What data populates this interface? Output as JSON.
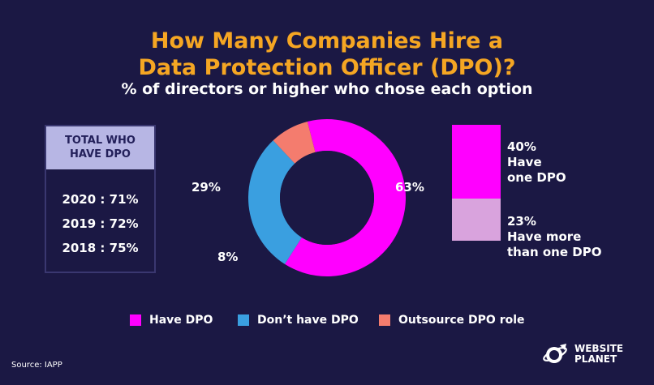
{
  "title_line1": "How Many Companies Hire a",
  "title_line2": "Data Protection Officer (DPO)?",
  "subtitle": "% of directors or higher who chose each option",
  "totals": {
    "header_line1": "TOTAL WHO",
    "header_line2": "HAVE DPO",
    "rows": [
      "2020 : 71%",
      "2019 : 72%",
      "2018 : 75%"
    ]
  },
  "chart_data": [
    {
      "type": "pie",
      "labels": [
        "Have DPO",
        "Don’t have DPO",
        "Outsource DPO role"
      ],
      "values": [
        63,
        29,
        8
      ],
      "value_labels": [
        "63%",
        "29%",
        "8%"
      ],
      "colors": [
        "#ff00ff",
        "#3a9fe0",
        "#f47c6e"
      ],
      "hole": true
    },
    {
      "type": "bar",
      "stacked": true,
      "segments": [
        {
          "value": 40,
          "label": "40%",
          "text_line1": "Have",
          "text_line2": "one DPO",
          "color": "#ff00ff"
        },
        {
          "value": 23,
          "label": "23%",
          "text_line1": "Have more",
          "text_line2": "than one DPO",
          "color": "#d9a3dd"
        }
      ]
    }
  ],
  "legend": [
    {
      "label": "Have DPO",
      "color": "#ff00ff"
    },
    {
      "label": "Don’t have DPO",
      "color": "#3a9fe0"
    },
    {
      "label": "Outsource DPO role",
      "color": "#f47c6e"
    }
  ],
  "source": "Source: IAPP",
  "logo": {
    "line1": "WEBSITE",
    "line2": "PLANET",
    "icon": "planet-rocket-icon"
  }
}
